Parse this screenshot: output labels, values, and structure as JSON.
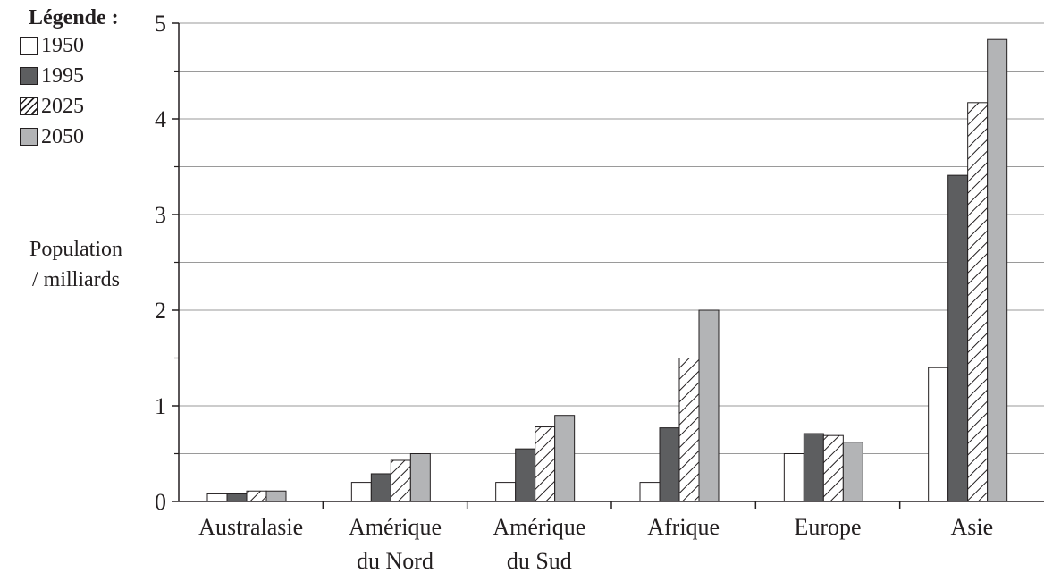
{
  "chart_data": {
    "type": "bar",
    "title": "",
    "ylabel_lines": [
      "Population",
      "/ milliards"
    ],
    "xlabel": "",
    "legend_title": "Légende :",
    "legend_position": "top-left",
    "grid": "horizontal",
    "ylim": [
      0,
      5
    ],
    "yticks": [
      "0",
      "1",
      "2",
      "3",
      "4",
      "5"
    ],
    "categories": [
      [
        "Australasie"
      ],
      [
        "Amérique",
        "du Nord"
      ],
      [
        "Amérique",
        "du Sud"
      ],
      [
        "Afrique"
      ],
      [
        "Europe"
      ],
      [
        "Asie"
      ]
    ],
    "series": [
      {
        "name": "1950",
        "style": "white",
        "color": "#ffffff",
        "values": [
          0.08,
          0.2,
          0.2,
          0.2,
          0.5,
          1.4
        ]
      },
      {
        "name": "1995",
        "style": "dark",
        "color": "#5d5e60",
        "values": [
          0.08,
          0.29,
          0.55,
          0.77,
          0.71,
          3.41
        ]
      },
      {
        "name": "2025",
        "style": "hatched",
        "color": "#ffffff",
        "values": [
          0.11,
          0.43,
          0.78,
          1.5,
          0.69,
          4.17
        ]
      },
      {
        "name": "2050",
        "style": "light",
        "color": "#b3b4b6",
        "values": [
          0.11,
          0.5,
          0.9,
          2.0,
          0.62,
          4.83
        ]
      }
    ]
  }
}
